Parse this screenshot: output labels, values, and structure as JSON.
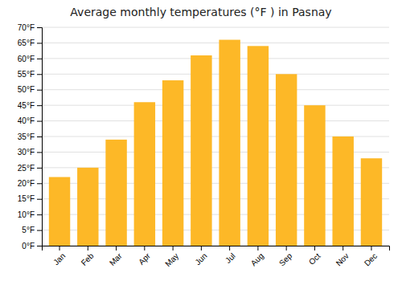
{
  "chart_data": {
    "type": "bar",
    "title": "Average monthly temperatures (°F ) in Pasnay",
    "categories": [
      "Jan",
      "Feb",
      "Mar",
      "Apr",
      "May",
      "Jun",
      "Jul",
      "Aug",
      "Sep",
      "Oct",
      "Nov",
      "Dec"
    ],
    "values": [
      22,
      25,
      34,
      46,
      53,
      61,
      66,
      64,
      55,
      45,
      35,
      28
    ],
    "color": "#FDB827",
    "ylim": [
      0,
      70
    ],
    "yticks": [
      {
        "value": 0,
        "label": "0°F"
      },
      {
        "value": 5,
        "label": "5°F"
      },
      {
        "value": 10,
        "label": "10°F"
      },
      {
        "value": 15,
        "label": "15°F"
      },
      {
        "value": 20,
        "label": "20°F"
      },
      {
        "value": 25,
        "label": "25°F"
      },
      {
        "value": 30,
        "label": "30°F"
      },
      {
        "value": 35,
        "label": "35°F"
      },
      {
        "value": 40,
        "label": "40°F"
      },
      {
        "value": 45,
        "label": "45°F"
      },
      {
        "value": 50,
        "label": "50°F"
      },
      {
        "value": 55,
        "label": "55°F"
      },
      {
        "value": 60,
        "label": "60°F"
      },
      {
        "value": 65,
        "label": "65°F"
      },
      {
        "value": 70,
        "label": "70°F"
      }
    ],
    "grid": true
  }
}
